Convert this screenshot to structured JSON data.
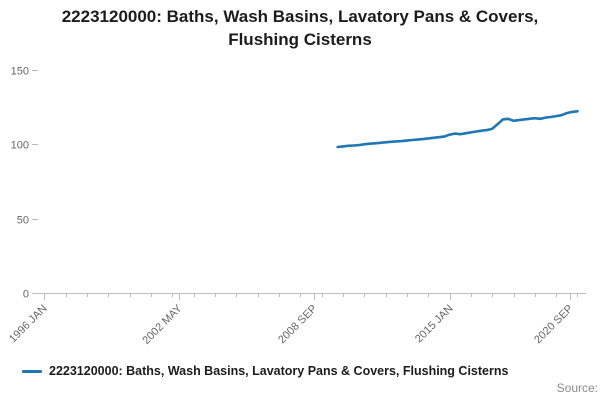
{
  "title": "2223120000: Baths, Wash Basins, Lavatory Pans & Covers, Flushing Cisterns",
  "legend": {
    "label": "2223120000: Baths, Wash Basins, Lavatory Pans & Covers, Flushing Cisterns"
  },
  "source": "Source:",
  "colors": {
    "line": "#1f77b4",
    "axis": "#bbbbbb",
    "tick_label": "#666666",
    "title": "#1c1c1c"
  },
  "chart_data": {
    "type": "line",
    "title": "2223120000: Baths, Wash Basins, Lavatory Pans & Covers, Flushing Cisterns",
    "xlabel": "",
    "ylabel": "",
    "grid": false,
    "legend_position": "bottom-left",
    "xlim": [
      1995.7,
      2021.4
    ],
    "ylim": [
      0,
      150
    ],
    "y_ticks": [
      0,
      50,
      100,
      150
    ],
    "x_ticks": [
      {
        "label": "1996 JAN",
        "x": 1996.0
      },
      {
        "label": "2002 MAY",
        "x": 2002.3333
      },
      {
        "label": "2008 SEP",
        "x": 2008.6667
      },
      {
        "label": "2015 JAN",
        "x": 2015.0
      },
      {
        "label": "2020 SEP",
        "x": 2020.6667
      }
    ],
    "minor_tick_interval_years": 1,
    "series": [
      {
        "name": "2223120000: Baths, Wash Basins, Lavatory Pans & Covers, Flushing Cisterns",
        "x": [
          2009.75,
          2010.0,
          2010.25,
          2010.5,
          2010.75,
          2011.0,
          2011.25,
          2011.5,
          2011.75,
          2012.0,
          2012.25,
          2012.5,
          2012.75,
          2013.0,
          2013.25,
          2013.5,
          2013.75,
          2014.0,
          2014.25,
          2014.5,
          2014.75,
          2015.0,
          2015.25,
          2015.5,
          2015.75,
          2016.0,
          2016.25,
          2016.5,
          2016.75,
          2017.0,
          2017.25,
          2017.5,
          2017.75,
          2018.0,
          2018.25,
          2018.5,
          2018.75,
          2019.0,
          2019.25,
          2019.5,
          2019.75,
          2020.0,
          2020.25,
          2020.5,
          2020.75,
          2021.0
        ],
        "values": [
          98.2,
          98.6,
          99.0,
          99.2,
          99.5,
          100.0,
          100.4,
          100.7,
          101.0,
          101.4,
          101.7,
          102.0,
          102.2,
          102.5,
          102.9,
          103.2,
          103.5,
          104.0,
          104.4,
          104.8,
          105.2,
          106.5,
          107.2,
          106.8,
          107.4,
          108.0,
          108.6,
          109.2,
          109.6,
          110.5,
          113.5,
          116.8,
          117.2,
          115.8,
          116.3,
          116.8,
          117.2,
          117.6,
          117.2,
          118.0,
          118.4,
          119.0,
          119.6,
          121.0,
          121.8,
          122.2
        ]
      }
    ]
  }
}
